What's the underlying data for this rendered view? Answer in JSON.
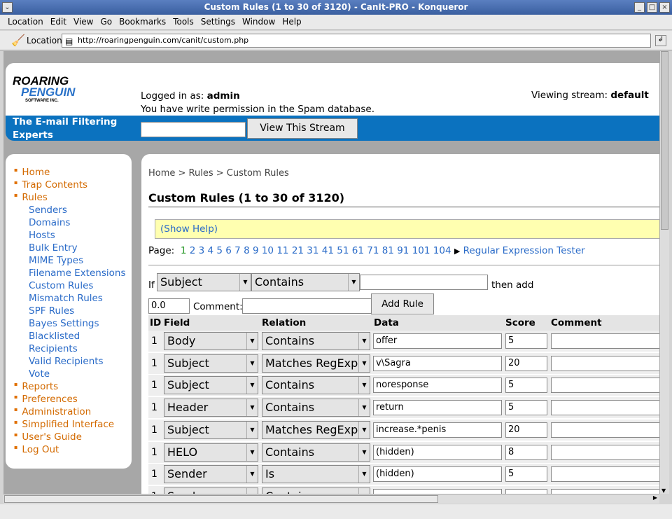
{
  "window": {
    "title": "Custom Rules (1 to 30 of 3120) - CanIt-PRO - Konqueror"
  },
  "menu": [
    "Location",
    "Edit",
    "View",
    "Go",
    "Bookmarks",
    "Tools",
    "Settings",
    "Window",
    "Help"
  ],
  "location": {
    "label": "Location:",
    "url": "http://roaringpenguin.com/canit/custom.php"
  },
  "header": {
    "logo_line1": "ROARING",
    "logo_line2": "PENGUIN",
    "logo_line3": "SOFTWARE INC.",
    "logged_in_label": "Logged in as:",
    "user": "admin",
    "permission": "You have write permission in the Spam database.",
    "stream_label": "Viewing stream:",
    "stream": "default",
    "tagline": "The E-mail Filtering Experts",
    "stream_input": "",
    "view_button": "View This Stream"
  },
  "sidebar": {
    "items": [
      {
        "label": "Home",
        "level": 0
      },
      {
        "label": "Trap Contents",
        "level": 0
      },
      {
        "label": "Rules",
        "level": 0
      },
      {
        "label": "Senders",
        "level": 1
      },
      {
        "label": "Domains",
        "level": 1
      },
      {
        "label": "Hosts",
        "level": 1
      },
      {
        "label": "Bulk Entry",
        "level": 1
      },
      {
        "label": "MIME Types",
        "level": 1
      },
      {
        "label": "Filename Extensions",
        "level": 1
      },
      {
        "label": "Custom Rules",
        "level": 1
      },
      {
        "label": "Mismatch Rules",
        "level": 1
      },
      {
        "label": "SPF Rules",
        "level": 1
      },
      {
        "label": "Bayes Settings",
        "level": 1
      },
      {
        "label": "Blacklisted Recipients",
        "level": 1
      },
      {
        "label": "",
        "level": 1
      },
      {
        "label": "Valid Recipients",
        "level": 1
      },
      {
        "label": "Vote",
        "level": 1
      },
      {
        "label": "Reports",
        "level": 0
      },
      {
        "label": "Preferences",
        "level": 0
      },
      {
        "label": "Administration",
        "level": 0
      },
      {
        "label": "Simplified Interface",
        "level": 0
      },
      {
        "label": "User's Guide",
        "level": 0
      },
      {
        "label": "Log Out",
        "level": 0
      }
    ]
  },
  "main": {
    "breadcrumb": "Home > Rules > Custom Rules",
    "title": "Custom Rules (1 to 30 of 3120)",
    "show_help": "(Show Help)",
    "page_label": "Page:",
    "current_page": "1",
    "pages": [
      "2",
      "3",
      "4",
      "5",
      "6",
      "7",
      "8",
      "9",
      "10",
      "11",
      "21",
      "31",
      "41",
      "51",
      "61",
      "71",
      "81",
      "91",
      "101",
      "104"
    ],
    "regex_tester": "Regular Expression Tester",
    "add": {
      "if": "If",
      "field": "Subject",
      "relation": "Contains",
      "data": "",
      "then_add": "then add",
      "score": "0.0",
      "comment_label": "Comment:",
      "comment": "",
      "button": "Add Rule"
    },
    "columns": [
      "ID",
      "Field",
      "Relation",
      "Data",
      "Score",
      "Comment"
    ],
    "rows": [
      {
        "id": "1",
        "field": "Body",
        "relation": "Contains",
        "data": "offer",
        "score": "5",
        "comment": ""
      },
      {
        "id": "1",
        "field": "Subject",
        "relation": "Matches RegExp",
        "data": "v\\Sagra",
        "score": "20",
        "comment": ""
      },
      {
        "id": "1",
        "field": "Subject",
        "relation": "Contains",
        "data": "noresponse",
        "score": "5",
        "comment": ""
      },
      {
        "id": "1",
        "field": "Header",
        "relation": "Contains",
        "data": "return",
        "score": "5",
        "comment": ""
      },
      {
        "id": "1",
        "field": "Subject",
        "relation": "Matches RegExp",
        "data": "increase.*penis",
        "score": "20",
        "comment": ""
      },
      {
        "id": "1",
        "field": "HELO",
        "relation": "Contains",
        "data": "(hidden)",
        "score": "8",
        "comment": ""
      },
      {
        "id": "1",
        "field": "Sender",
        "relation": "Is",
        "data": "(hidden)",
        "score": "5",
        "comment": ""
      },
      {
        "id": "1",
        "field": "Sender",
        "relation": "Contains",
        "data": "",
        "score": "",
        "comment": ""
      }
    ]
  }
}
